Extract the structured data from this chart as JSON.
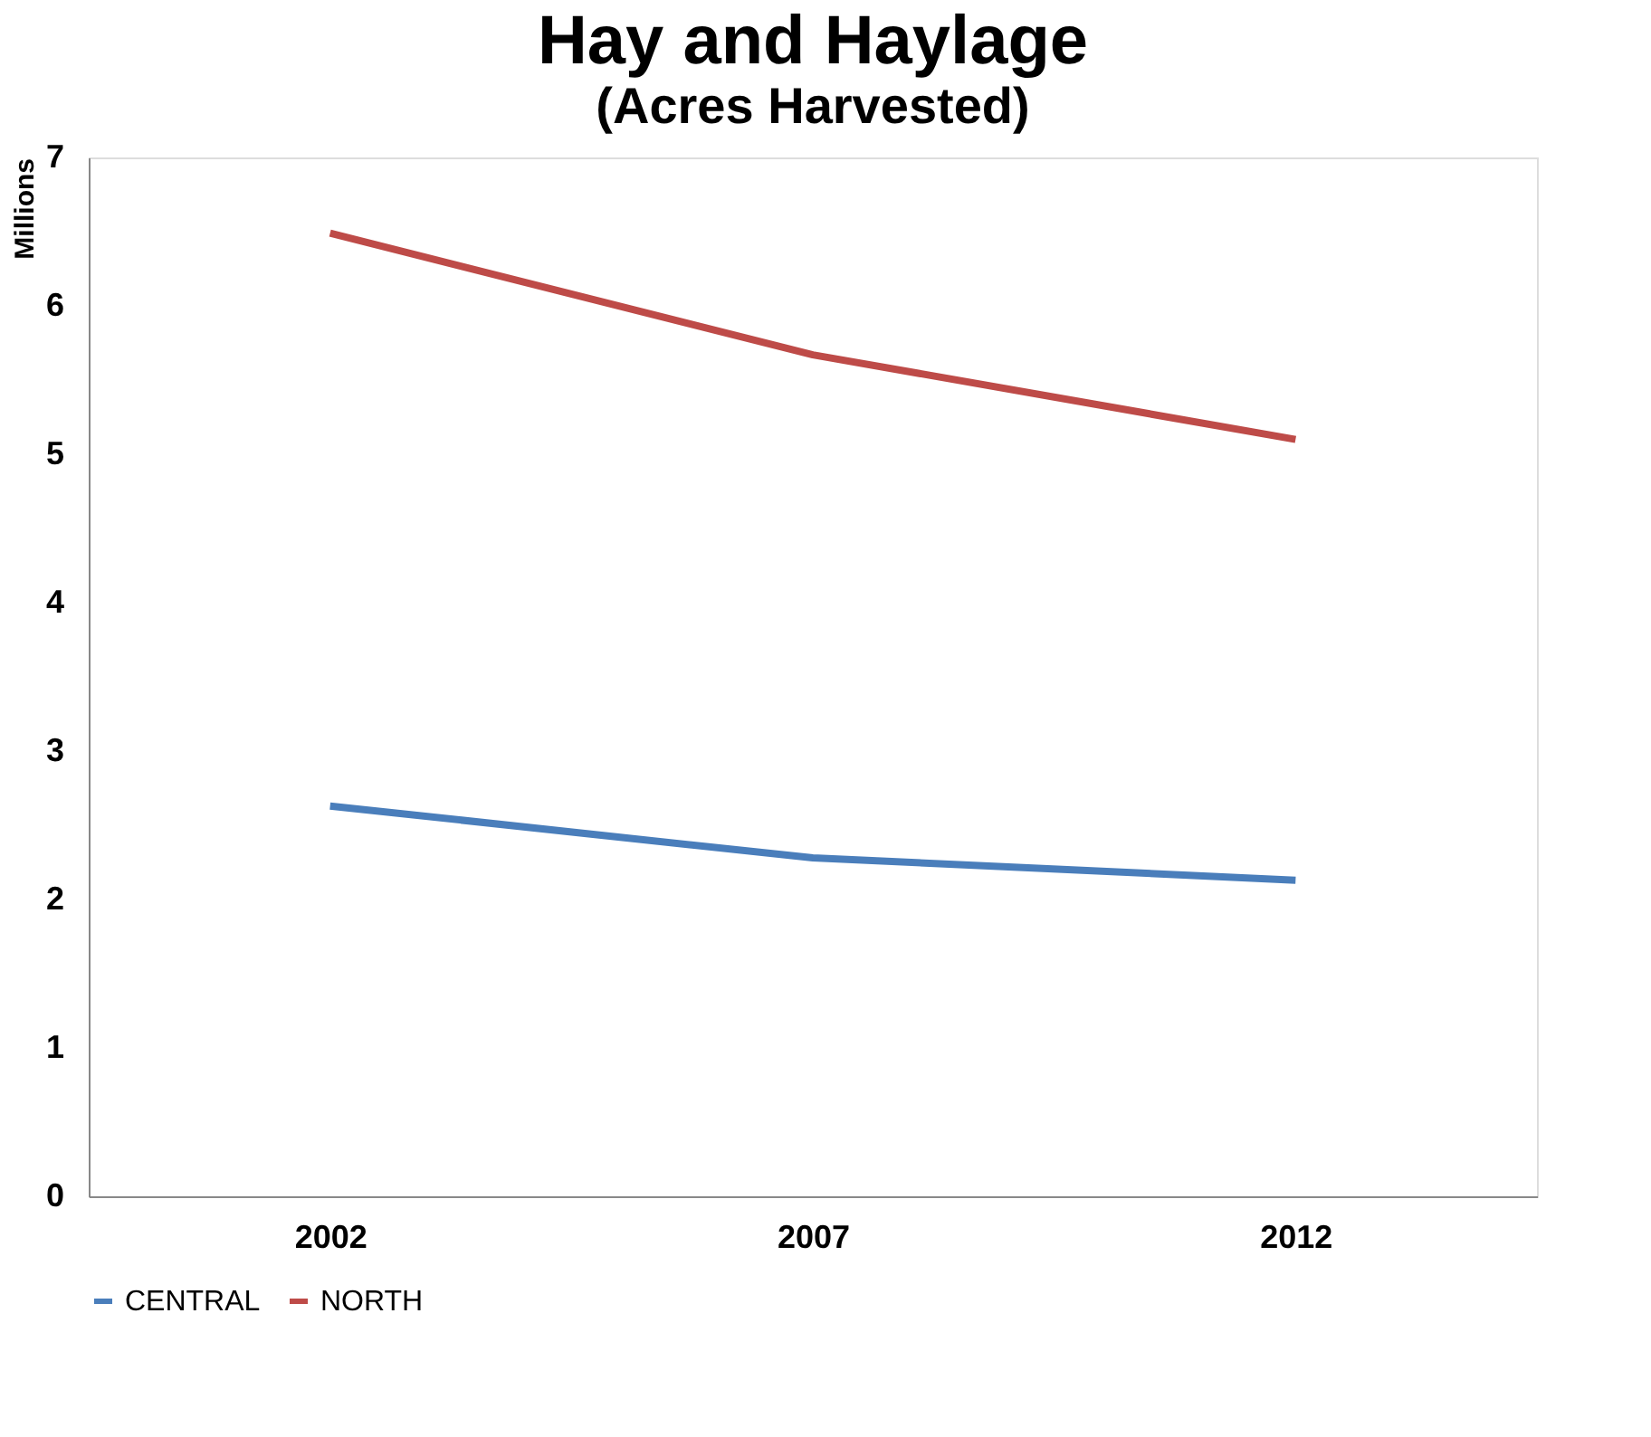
{
  "chart_data": {
    "type": "line",
    "title": "Hay and Haylage",
    "subtitle": "(Acres Harvested)",
    "ylabel": "Millions",
    "categories": [
      "2002",
      "2007",
      "2012"
    ],
    "series": [
      {
        "name": "CENTRAL",
        "color": "#4a7ebb",
        "values": [
          2.63,
          2.28,
          2.13
        ]
      },
      {
        "name": "NORTH",
        "color": "#be4b48",
        "values": [
          6.49,
          5.67,
          5.1
        ]
      }
    ],
    "ylim": [
      0,
      7
    ],
    "yticks": [
      0,
      1,
      2,
      3,
      4,
      5,
      6,
      7
    ],
    "grid": false,
    "legend": "bottom",
    "marker": "none",
    "line_style": "solid"
  }
}
